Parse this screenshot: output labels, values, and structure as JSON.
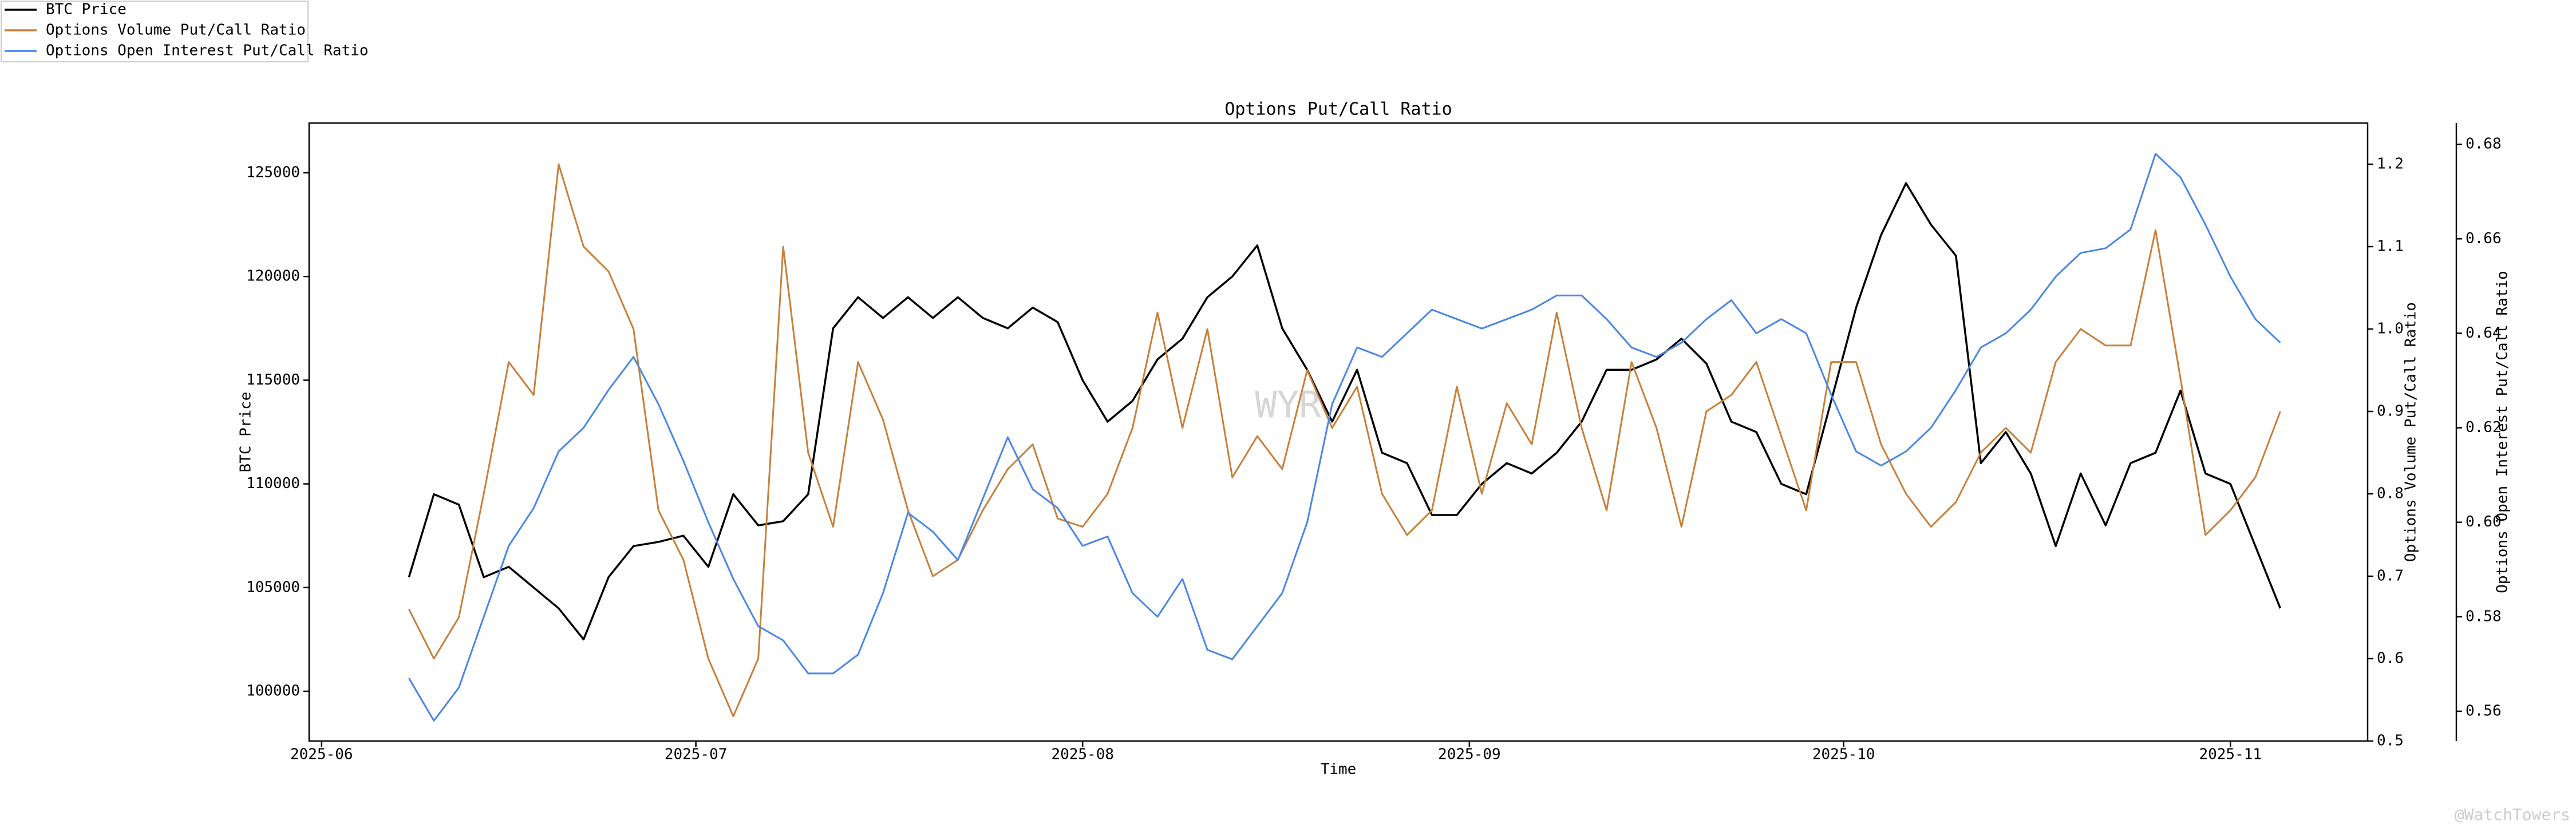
{
  "chart_data": {
    "type": "line",
    "title": "Options Put/Call Ratio",
    "xlabel": "Time",
    "ylabel": "BTC Price",
    "y2label": "Options Volume Put/Call Ratio",
    "y3label": "Options Open Interest Put/Call Ratio",
    "watermark": "WYR",
    "credit": "@WatchTowers",
    "legend": "upper left",
    "x": [
      "2025-06-08",
      "2025-06-10",
      "2025-06-12",
      "2025-06-14",
      "2025-06-16",
      "2025-06-18",
      "2025-06-20",
      "2025-06-22",
      "2025-06-24",
      "2025-06-26",
      "2025-06-28",
      "2025-06-30",
      "2025-07-02",
      "2025-07-04",
      "2025-07-06",
      "2025-07-08",
      "2025-07-10",
      "2025-07-12",
      "2025-07-14",
      "2025-07-16",
      "2025-07-18",
      "2025-07-20",
      "2025-07-22",
      "2025-07-24",
      "2025-07-26",
      "2025-07-28",
      "2025-07-30",
      "2025-08-01",
      "2025-08-03",
      "2025-08-05",
      "2025-08-07",
      "2025-08-09",
      "2025-08-11",
      "2025-08-13",
      "2025-08-15",
      "2025-08-17",
      "2025-08-19",
      "2025-08-21",
      "2025-08-23",
      "2025-08-25",
      "2025-08-27",
      "2025-08-29",
      "2025-08-31",
      "2025-09-02",
      "2025-09-04",
      "2025-09-06",
      "2025-09-08",
      "2025-09-10",
      "2025-09-12",
      "2025-09-14",
      "2025-09-16",
      "2025-09-18",
      "2025-09-20",
      "2025-09-22",
      "2025-09-24",
      "2025-09-26",
      "2025-09-28",
      "2025-09-30",
      "2025-10-02",
      "2025-10-04",
      "2025-10-06",
      "2025-10-08",
      "2025-10-10",
      "2025-10-12",
      "2025-10-14",
      "2025-10-16",
      "2025-10-18",
      "2025-10-20",
      "2025-10-22",
      "2025-10-24",
      "2025-10-26",
      "2025-10-28",
      "2025-10-30",
      "2025-11-01",
      "2025-11-03",
      "2025-11-05"
    ],
    "xlim": [
      "2025-05-31",
      "2025-11-12"
    ],
    "xticks": [
      "2025-06",
      "2025-07",
      "2025-08",
      "2025-09",
      "2025-10",
      "2025-11"
    ],
    "ylim": [
      97600,
      127400
    ],
    "yticks": [
      100000,
      105000,
      110000,
      115000,
      120000,
      125000
    ],
    "y2lim": [
      0.5,
      1.25
    ],
    "y2ticks": [
      0.5,
      0.6,
      0.7,
      0.8,
      0.9,
      {
        "value": 1.0,
        "label": "1.0"
      },
      1.1,
      1.2
    ],
    "y3lim": [
      0.5537,
      0.6845
    ],
    "y3ticks": [
      0.56,
      0.58,
      {
        "value": 0.6,
        "label": "0.60"
      },
      0.62,
      0.64,
      0.66,
      0.68
    ],
    "series": [
      {
        "name": "BTC Price",
        "color": "#000000",
        "axis": "y",
        "values": [
          105500,
          109500,
          109000,
          105500,
          106000,
          105000,
          104000,
          102500,
          105500,
          107000,
          107200,
          107500,
          106000,
          109500,
          108000,
          108200,
          109500,
          117500,
          119000,
          118000,
          119000,
          118000,
          119000,
          118000,
          117500,
          118500,
          117800,
          115000,
          113000,
          114000,
          116000,
          117000,
          119000,
          120000,
          121500,
          117500,
          115500,
          113000,
          115500,
          111500,
          111000,
          108500,
          108500,
          110000,
          111000,
          110500,
          111500,
          113000,
          115500,
          115500,
          116000,
          117000,
          115800,
          113000,
          112500,
          110000,
          109500,
          114000,
          118500,
          122000,
          124500,
          122500,
          121000,
          111000,
          112500,
          110500,
          107000,
          110500,
          108000,
          111000,
          111500,
          114500,
          110500,
          110000,
          107000,
          104000
        ]
      },
      {
        "name": "Options Volume Put/Call Ratio",
        "color": "#c8803a",
        "axis": "y2",
        "values": [
          0.66,
          0.6,
          0.65,
          0.8,
          0.96,
          0.92,
          1.2,
          1.1,
          1.07,
          1.0,
          0.78,
          0.72,
          0.6,
          0.53,
          0.6,
          1.1,
          0.85,
          0.76,
          0.96,
          0.89,
          0.78,
          0.7,
          0.72,
          0.78,
          0.83,
          0.86,
          0.77,
          0.76,
          0.8,
          0.88,
          1.02,
          0.88,
          1.0,
          0.82,
          0.87,
          0.83,
          0.95,
          0.88,
          0.93,
          0.8,
          0.75,
          0.78,
          0.93,
          0.8,
          0.91,
          0.86,
          1.02,
          0.88,
          0.78,
          0.96,
          0.88,
          0.76,
          0.9,
          0.92,
          0.96,
          0.87,
          0.78,
          0.96,
          0.96,
          0.86,
          0.8,
          0.76,
          0.79,
          0.85,
          0.88,
          0.85,
          0.96,
          1.0,
          0.98,
          0.98,
          1.12,
          0.94,
          0.75,
          0.78,
          0.82,
          0.9
        ]
      },
      {
        "name": "Options Open Interest Put/Call Ratio",
        "color": "#4a86e8",
        "axis": "y3",
        "values": [
          0.567,
          0.558,
          0.565,
          0.58,
          0.595,
          0.603,
          0.615,
          0.62,
          0.628,
          0.635,
          0.625,
          0.613,
          0.6,
          0.588,
          0.578,
          0.575,
          0.568,
          0.568,
          0.572,
          0.585,
          0.602,
          0.598,
          0.592,
          0.605,
          0.618,
          0.607,
          0.603,
          0.595,
          0.597,
          0.585,
          0.58,
          0.588,
          0.573,
          0.571,
          0.578,
          0.585,
          0.6,
          0.625,
          0.637,
          0.635,
          0.64,
          0.645,
          0.643,
          0.641,
          0.643,
          0.645,
          0.648,
          0.648,
          0.643,
          0.637,
          0.635,
          0.638,
          0.643,
          0.647,
          0.64,
          0.643,
          0.64,
          0.627,
          0.615,
          0.612,
          0.615,
          0.62,
          0.628,
          0.637,
          0.64,
          0.645,
          0.652,
          0.657,
          0.658,
          0.662,
          0.678,
          0.673,
          0.663,
          0.652,
          0.643,
          0.638
        ]
      }
    ]
  }
}
